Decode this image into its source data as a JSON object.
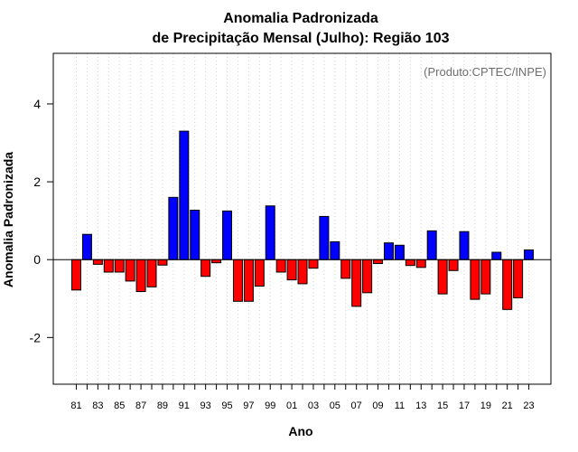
{
  "chart_data": {
    "type": "bar",
    "title_line1": "Anomalia Padronizada",
    "title_line2": "de Precipitação Mensal (Julho): Região 103",
    "xlabel": "Ano",
    "ylabel": "Anomalia Padronizada",
    "annotation": "(Produto:CPTEC/INPE)",
    "ylim": [
      -3.2,
      5.3
    ],
    "yticks": [
      -2,
      0,
      2,
      4
    ],
    "ytick_labels": [
      "-2",
      "0",
      "2",
      "4"
    ],
    "grid": "vertical dotted",
    "positive_color": "#0000ff",
    "negative_color": "#ff0000",
    "categories": [
      "1981",
      "1982",
      "1983",
      "1984",
      "1985",
      "1986",
      "1987",
      "1988",
      "1989",
      "1990",
      "1991",
      "1992",
      "1993",
      "1994",
      "1995",
      "1996",
      "1997",
      "1998",
      "1999",
      "2000",
      "2001",
      "2002",
      "2003",
      "2004",
      "2005",
      "2006",
      "2007",
      "2008",
      "2009",
      "2010",
      "2011",
      "2012",
      "2013",
      "2014",
      "2015",
      "2016",
      "2017",
      "2018",
      "2019",
      "2020",
      "2021",
      "2022",
      "2023"
    ],
    "xtick_labels": [
      "81",
      "",
      "83",
      "",
      "85",
      "",
      "87",
      "",
      "89",
      "",
      "91",
      "",
      "93",
      "",
      "95",
      "",
      "97",
      "",
      "99",
      "",
      "01",
      "",
      "03",
      "",
      "05",
      "",
      "07",
      "",
      "09",
      "",
      "11",
      "",
      "13",
      "",
      "15",
      "",
      "17",
      "",
      "19",
      "",
      "21",
      "",
      "23"
    ],
    "values": [
      -0.78,
      0.65,
      -0.12,
      -0.32,
      -0.32,
      -0.55,
      -0.82,
      -0.7,
      -0.14,
      1.6,
      3.3,
      1.27,
      -0.43,
      -0.08,
      1.25,
      -1.07,
      -1.07,
      -0.68,
      1.38,
      -0.32,
      -0.52,
      -0.62,
      -0.22,
      1.11,
      0.46,
      -0.48,
      -1.2,
      -0.85,
      -0.1,
      0.43,
      0.37,
      -0.15,
      -0.2,
      0.74,
      -0.88,
      -0.28,
      0.72,
      -1.02,
      -0.88,
      0.19,
      -1.28,
      -0.98,
      0.25
    ]
  }
}
